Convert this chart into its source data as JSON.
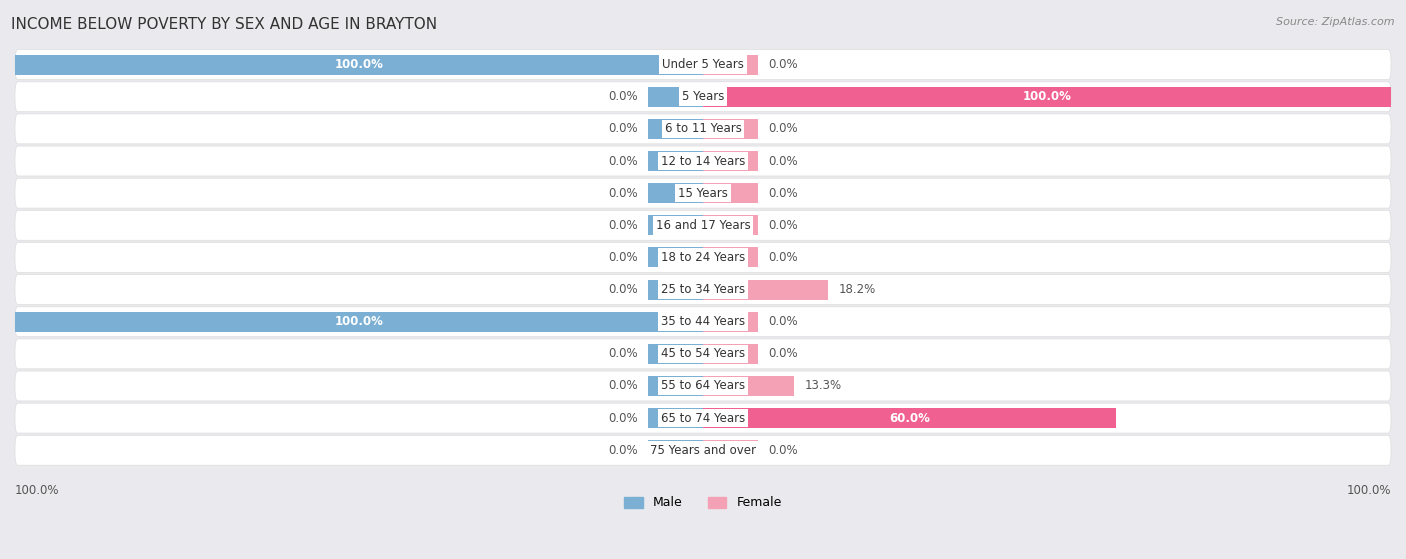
{
  "title": "INCOME BELOW POVERTY BY SEX AND AGE IN BRAYTON",
  "source": "Source: ZipAtlas.com",
  "categories": [
    "Under 5 Years",
    "5 Years",
    "6 to 11 Years",
    "12 to 14 Years",
    "15 Years",
    "16 and 17 Years",
    "18 to 24 Years",
    "25 to 34 Years",
    "35 to 44 Years",
    "45 to 54 Years",
    "55 to 64 Years",
    "65 to 74 Years",
    "75 Years and over"
  ],
  "male": [
    100.0,
    0.0,
    0.0,
    0.0,
    0.0,
    0.0,
    0.0,
    0.0,
    100.0,
    0.0,
    0.0,
    0.0,
    0.0
  ],
  "female": [
    0.0,
    100.0,
    0.0,
    0.0,
    0.0,
    0.0,
    0.0,
    18.2,
    0.0,
    0.0,
    13.3,
    60.0,
    0.0
  ],
  "male_color": "#7bafd4",
  "female_color": "#f4a0b5",
  "female_color_bright": "#f06090",
  "background_color": "#eaeaee",
  "row_bg_color": "#f5f5f8",
  "bar_height": 0.62,
  "stub_value": 8.0,
  "xlim": 100,
  "title_fontsize": 11,
  "label_fontsize": 8.5,
  "category_fontsize": 8.5,
  "legend_fontsize": 9,
  "source_fontsize": 8
}
